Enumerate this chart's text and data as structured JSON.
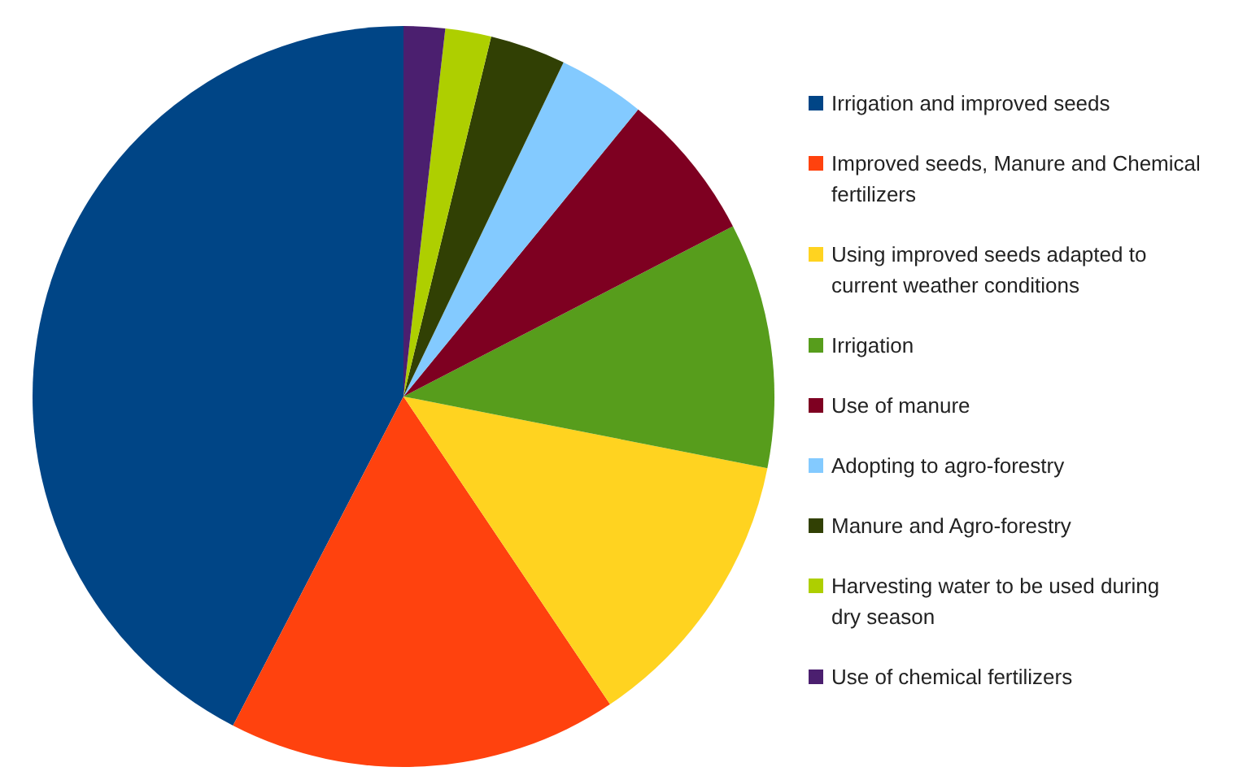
{
  "chart_data": {
    "type": "pie",
    "categories": [
      "Irrigation and improved seeds",
      "Improved seeds, Manure and Chemical fertilizers",
      "Using improved seeds adapted to current weather conditions",
      "Irrigation",
      "Use of manure",
      "Adopting to agro-forestry",
      "Manure and Agro-forestry",
      "Harvesting water to be used during dry season",
      "Use of chemical fertilizers"
    ],
    "values": [
      42.4,
      17,
      12.5,
      10.7,
      6.5,
      3.8,
      3.3,
      2,
      1.8
    ],
    "colors": [
      "#004586",
      "#ff420e",
      "#ffd320",
      "#579d1c",
      "#7e0021",
      "#83caff",
      "#314004",
      "#aecf00",
      "#4b1f6f"
    ],
    "legend": "right"
  }
}
